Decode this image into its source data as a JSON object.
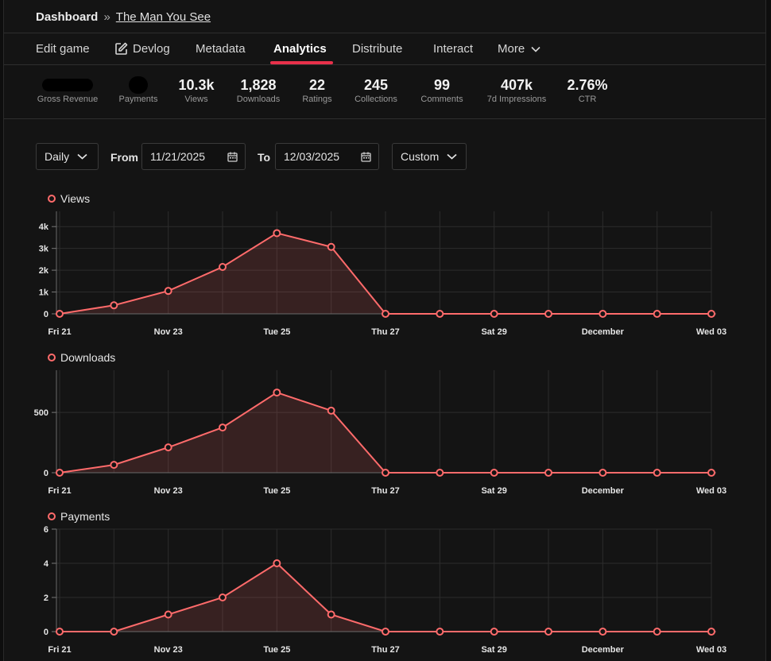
{
  "breadcrumb": {
    "root": "Dashboard",
    "separator": "»",
    "game": "The Man You See"
  },
  "nav": {
    "items": [
      {
        "label": "Edit game"
      },
      {
        "label": "Devlog",
        "icon": "edit-icon"
      },
      {
        "label": "Metadata"
      },
      {
        "label": "Analytics",
        "active": true
      },
      {
        "label": "Distribute"
      },
      {
        "label": "Interact"
      },
      {
        "label": "More",
        "icon": "chevron-down-icon"
      }
    ]
  },
  "stats": [
    {
      "value": "",
      "label": "Gross Revenue",
      "redacted": true
    },
    {
      "value": "",
      "label": "Payments",
      "redacted": true
    },
    {
      "value": "10.3k",
      "label": "Views"
    },
    {
      "value": "1,828",
      "label": "Downloads"
    },
    {
      "value": "22",
      "label": "Ratings"
    },
    {
      "value": "245",
      "label": "Collections"
    },
    {
      "value": "99",
      "label": "Comments"
    },
    {
      "value": "407k",
      "label": "7d Impressions"
    },
    {
      "value": "2.76%",
      "label": "CTR"
    }
  ],
  "controls": {
    "interval": "Daily",
    "from_label": "From",
    "from_date": "11/21/2025",
    "to_label": "To",
    "to_date": "12/03/2025",
    "range": "Custom"
  },
  "colors": {
    "accent": "#e8304a",
    "series": "#ff6b6b"
  },
  "chart_data": [
    {
      "type": "area",
      "legend": "Views",
      "x_ticks": [
        "Fri 21",
        "Nov 23",
        "Tue 25",
        "Thu 27",
        "Sat 29",
        "December",
        "Wed 03"
      ],
      "y_ticks": [
        "0",
        "1k",
        "2k",
        "3k",
        "4k"
      ],
      "y_tick_values": [
        0,
        1000,
        2000,
        3000,
        4000
      ],
      "ylim": [
        0,
        4700
      ],
      "values": [
        0,
        390,
        1050,
        2150,
        3700,
        3070,
        0,
        0,
        0,
        0,
        0,
        0,
        0
      ]
    },
    {
      "type": "area",
      "legend": "Downloads",
      "x_ticks": [
        "Fri 21",
        "Nov 23",
        "Tue 25",
        "Thu 27",
        "Sat 29",
        "December",
        "Wed 03"
      ],
      "y_ticks": [
        "0",
        "500"
      ],
      "y_tick_values": [
        0,
        500
      ],
      "ylim": [
        0,
        850
      ],
      "values": [
        0,
        65,
        210,
        375,
        665,
        515,
        0,
        0,
        0,
        0,
        0,
        0,
        0
      ]
    },
    {
      "type": "area",
      "legend": "Payments",
      "x_ticks": [
        "Fri 21",
        "Nov 23",
        "Tue 25",
        "Thu 27",
        "Sat 29",
        "December",
        "Wed 03"
      ],
      "y_ticks": [
        "0",
        "2",
        "4",
        "6"
      ],
      "y_tick_values": [
        0,
        2,
        4,
        6
      ],
      "ylim": [
        0,
        6
      ],
      "values": [
        0,
        0,
        1,
        2,
        4,
        1,
        0,
        0,
        0,
        0,
        0,
        0,
        0
      ]
    }
  ]
}
